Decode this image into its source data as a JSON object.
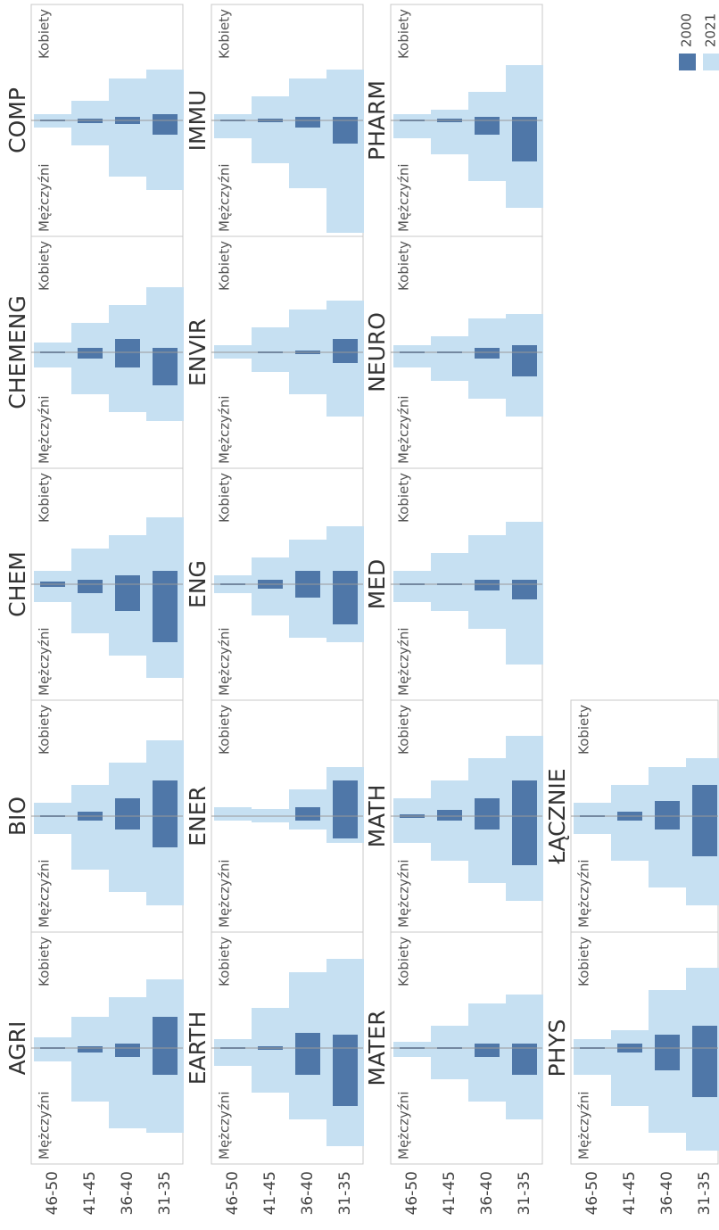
{
  "chart_data": [
    {
      "type": "pyramid",
      "title": "AGRI",
      "left_label": "Mężczyźni",
      "right_label": "Kobiety",
      "categories": [
        "46-50",
        "41-45",
        "36-40",
        "31-35"
      ],
      "series": [
        {
          "name": "2021",
          "color": "#c6e0f2",
          "left_values": [
            15,
            60,
            90,
            95
          ],
          "right_values": [
            12,
            35,
            57,
            77
          ]
        },
        {
          "name": "2000",
          "color": "#4f77a8",
          "left_values": [
            1,
            5,
            10,
            30
          ],
          "right_values": [
            1,
            2,
            5,
            35
          ]
        }
      ]
    },
    {
      "type": "pyramid",
      "title": "BIO",
      "left_label": "Mężczyźni",
      "right_label": "Kobiety",
      "categories": [
        "46-50",
        "41-45",
        "36-40",
        "31-35"
      ],
      "series": [
        {
          "name": "2021",
          "color": "#c6e0f2",
          "left_values": [
            20,
            60,
            85,
            100
          ],
          "right_values": [
            15,
            35,
            60,
            85
          ]
        },
        {
          "name": "2000",
          "color": "#4f77a8",
          "left_values": [
            1,
            5,
            15,
            35
          ],
          "right_values": [
            1,
            5,
            20,
            40
          ]
        }
      ]
    },
    {
      "type": "pyramid",
      "title": "CHEM",
      "left_label": "Mężczyźni",
      "right_label": "Kobiety",
      "categories": [
        "46-50",
        "41-45",
        "36-40",
        "31-35"
      ],
      "series": [
        {
          "name": "2021",
          "color": "#c6e0f2",
          "left_values": [
            20,
            55,
            80,
            105
          ],
          "right_values": [
            15,
            40,
            55,
            75
          ]
        },
        {
          "name": "2000",
          "color": "#4f77a8",
          "left_values": [
            3,
            10,
            30,
            65
          ],
          "right_values": [
            3,
            5,
            10,
            15
          ]
        }
      ]
    },
    {
      "type": "pyramid",
      "title": "CHEMENG",
      "left_label": "Mężczyźni",
      "right_label": "Kobiety",
      "categories": [
        "46-50",
        "41-45",
        "36-40",
        "31-35"
      ],
      "series": [
        {
          "name": "2021",
          "color": "#c6e0f2",
          "left_values": [
            17,
            47,
            67,
            77
          ],
          "right_values": [
            11,
            33,
            53,
            73
          ]
        },
        {
          "name": "2000",
          "color": "#4f77a8",
          "left_values": [
            1,
            7,
            17,
            37
          ],
          "right_values": [
            1,
            5,
            15,
            5
          ]
        }
      ]
    },
    {
      "type": "pyramid",
      "title": "COMP",
      "left_label": "Mężczyźni",
      "right_label": "Kobiety",
      "categories": [
        "46-50",
        "41-45",
        "36-40",
        "31-35"
      ],
      "series": [
        {
          "name": "2021",
          "color": "#c6e0f2",
          "left_values": [
            8,
            28,
            63,
            78
          ],
          "right_values": [
            7,
            22,
            47,
            57
          ]
        },
        {
          "name": "2000",
          "color": "#4f77a8",
          "left_values": [
            1,
            3,
            4,
            16
          ],
          "right_values": [
            1,
            2,
            4,
            7
          ]
        }
      ]
    },
    {
      "type": "pyramid",
      "title": "EARTH",
      "left_label": "Mężczyźni",
      "right_label": "Kobiety",
      "categories": [
        "46-50",
        "41-45",
        "36-40",
        "31-35"
      ],
      "series": [
        {
          "name": "2021",
          "color": "#c6e0f2",
          "left_values": [
            20,
            50,
            80,
            110
          ],
          "right_values": [
            10,
            45,
            85,
            100
          ]
        },
        {
          "name": "2000",
          "color": "#4f77a8",
          "left_values": [
            1,
            2,
            30,
            65
          ],
          "right_values": [
            1,
            2,
            17,
            15
          ]
        }
      ]
    },
    {
      "type": "pyramid",
      "title": "ENER",
      "left_label": "Mężczyźni",
      "right_label": "Kobiety",
      "categories": [
        "46-50",
        "41-45",
        "36-40",
        "31-35"
      ],
      "series": [
        {
          "name": "2021",
          "color": "#c6e0f2",
          "left_values": [
            5,
            7,
            15,
            30
          ],
          "right_values": [
            10,
            8,
            30,
            55
          ]
        },
        {
          "name": "2000",
          "color": "#4f77a8",
          "left_values": [
            0.5,
            0.5,
            5,
            25
          ],
          "right_values": [
            0.5,
            0.5,
            10,
            40
          ]
        }
      ]
    },
    {
      "type": "pyramid",
      "title": "ENG",
      "left_label": "Mężczyźni",
      "right_label": "Kobiety",
      "categories": [
        "46-50",
        "41-45",
        "36-40",
        "31-35"
      ],
      "series": [
        {
          "name": "2021",
          "color": "#c6e0f2",
          "left_values": [
            10,
            35,
            60,
            65
          ],
          "right_values": [
            10,
            30,
            50,
            65
          ]
        },
        {
          "name": "2000",
          "color": "#4f77a8",
          "left_values": [
            1,
            5,
            15,
            45
          ],
          "right_values": [
            1,
            5,
            15,
            15
          ]
        }
      ]
    },
    {
      "type": "pyramid",
      "title": "ENVIR",
      "left_label": "Mężczyźni",
      "right_label": "Kobiety",
      "categories": [
        "46-50",
        "41-45",
        "36-40",
        "31-35"
      ],
      "series": [
        {
          "name": "2021",
          "color": "#c6e0f2",
          "left_values": [
            7,
            22,
            47,
            72
          ],
          "right_values": [
            8,
            28,
            48,
            58
          ]
        },
        {
          "name": "2000",
          "color": "#4f77a8",
          "left_values": [
            0.5,
            1,
            2,
            12
          ],
          "right_values": [
            0.5,
            1,
            2,
            15
          ]
        }
      ]
    },
    {
      "type": "pyramid",
      "title": "IMMU",
      "left_label": "Mężczyźni",
      "right_label": "Kobiety",
      "categories": [
        "46-50",
        "41-45",
        "36-40",
        "31-35"
      ],
      "series": [
        {
          "name": "2021",
          "color": "#c6e0f2",
          "left_values": [
            20,
            48,
            76,
            126
          ],
          "right_values": [
            7,
            27,
            47,
            57
          ]
        },
        {
          "name": "2000",
          "color": "#4f77a8",
          "left_values": [
            1,
            2,
            8,
            26
          ],
          "right_values": [
            1,
            2,
            4,
            4
          ]
        }
      ]
    },
    {
      "type": "pyramid",
      "title": "MATER",
      "left_label": "Mężczyźni",
      "right_label": "Kobiety",
      "categories": [
        "46-50",
        "41-45",
        "36-40",
        "31-35"
      ],
      "series": [
        {
          "name": "2021",
          "color": "#c6e0f2",
          "left_values": [
            10,
            35,
            60,
            80
          ],
          "right_values": [
            7,
            25,
            50,
            60
          ]
        },
        {
          "name": "2000",
          "color": "#4f77a8",
          "left_values": [
            1,
            1,
            10,
            30
          ],
          "right_values": [
            1,
            1,
            5,
            5
          ]
        }
      ]
    },
    {
      "type": "pyramid",
      "title": "MATH",
      "left_label": "Mężczyźni",
      "right_label": "Kobiety",
      "categories": [
        "46-50",
        "41-45",
        "36-40",
        "31-35"
      ],
      "series": [
        {
          "name": "2021",
          "color": "#c6e0f2",
          "left_values": [
            30,
            50,
            75,
            95
          ],
          "right_values": [
            20,
            40,
            65,
            90
          ]
        },
        {
          "name": "2000",
          "color": "#4f77a8",
          "left_values": [
            2,
            5,
            15,
            55
          ],
          "right_values": [
            2,
            7,
            20,
            40
          ]
        }
      ]
    },
    {
      "type": "pyramid",
      "title": "MED",
      "left_label": "Mężczyźni",
      "right_label": "Kobiety",
      "categories": [
        "46-50",
        "41-45",
        "36-40",
        "31-35"
      ],
      "series": [
        {
          "name": "2021",
          "color": "#c6e0f2",
          "left_values": [
            20,
            30,
            50,
            90
          ],
          "right_values": [
            15,
            35,
            55,
            70
          ]
        },
        {
          "name": "2000",
          "color": "#4f77a8",
          "left_values": [
            1,
            1,
            7,
            17
          ],
          "right_values": [
            1,
            1,
            5,
            5
          ]
        }
      ]
    },
    {
      "type": "pyramid",
      "title": "NEURO",
      "left_label": "Mężczyźni",
      "right_label": "Kobiety",
      "categories": [
        "46-50",
        "41-45",
        "36-40",
        "31-35"
      ],
      "series": [
        {
          "name": "2021",
          "color": "#c6e0f2",
          "left_values": [
            17,
            32,
            52,
            72
          ],
          "right_values": [
            8,
            18,
            38,
            43
          ]
        },
        {
          "name": "2000",
          "color": "#4f77a8",
          "left_values": [
            1,
            1,
            7,
            27
          ],
          "right_values": [
            1,
            1,
            5,
            8
          ]
        }
      ]
    },
    {
      "type": "pyramid",
      "title": "PHARM",
      "left_label": "Mężczyźni",
      "right_label": "Kobiety",
      "categories": [
        "46-50",
        "41-45",
        "36-40",
        "31-35"
      ],
      "series": [
        {
          "name": "2021",
          "color": "#c6e0f2",
          "left_values": [
            20,
            38,
            68,
            98
          ],
          "right_values": [
            7,
            12,
            32,
            62
          ]
        },
        {
          "name": "2000",
          "color": "#4f77a8",
          "left_values": [
            1,
            2,
            16,
            46
          ],
          "right_values": [
            1,
            2,
            4,
            4
          ]
        }
      ]
    },
    {
      "type": "pyramid",
      "title": "PHYS",
      "left_label": "Mężczyźni",
      "right_label": "Kobiety",
      "categories": [
        "46-50",
        "41-45",
        "36-40",
        "31-35"
      ],
      "series": [
        {
          "name": "2021",
          "color": "#c6e0f2",
          "left_values": [
            30,
            65,
            95,
            115
          ],
          "right_values": [
            10,
            20,
            65,
            90
          ]
        },
        {
          "name": "2000",
          "color": "#4f77a8",
          "left_values": [
            1,
            5,
            25,
            55
          ],
          "right_values": [
            1,
            5,
            15,
            25
          ]
        }
      ]
    },
    {
      "type": "pyramid",
      "title": "ŁĄCZNIE",
      "left_label": "Mężczyźni",
      "right_label": "Kobiety",
      "categories": [
        "46-50",
        "41-45",
        "36-40",
        "31-35"
      ],
      "series": [
        {
          "name": "2021",
          "color": "#c6e0f2",
          "left_values": [
            20,
            50,
            80,
            100
          ],
          "right_values": [
            15,
            35,
            55,
            65
          ]
        },
        {
          "name": "2000",
          "color": "#4f77a8",
          "left_values": [
            1,
            5,
            15,
            45
          ],
          "right_values": [
            1,
            5,
            17,
            35
          ]
        }
      ]
    }
  ]
}
